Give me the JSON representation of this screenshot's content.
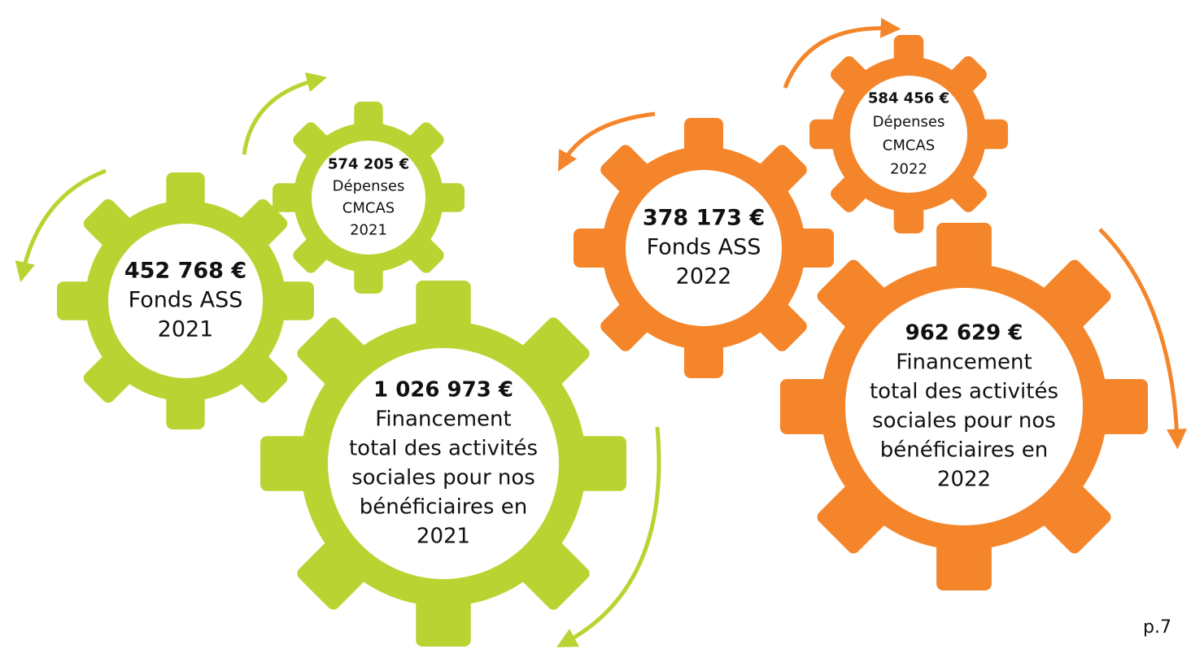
{
  "gears": [
    {
      "amount": "452 768 €",
      "lines": [
        "Fonds ASS",
        "2021"
      ]
    },
    {
      "amount": "574 205 €",
      "lines": [
        "Dépenses",
        "CMCAS",
        "2021"
      ]
    },
    {
      "amount": "1 026 973 €",
      "lines": [
        "Financement",
        "total des activités",
        "sociales pour nos",
        "bénéficiaires en",
        "2021"
      ]
    },
    {
      "amount": "378 173 €",
      "lines": [
        "Fonds ASS",
        "2022"
      ]
    },
    {
      "amount": "584 456 €",
      "lines": [
        "Dépenses",
        "CMCAS",
        "2022"
      ]
    },
    {
      "amount": "962 629 €",
      "lines": [
        "Financement",
        "total des activités",
        "sociales pour nos",
        "bénéficiaires en",
        "2022"
      ]
    }
  ],
  "page": "p.7"
}
